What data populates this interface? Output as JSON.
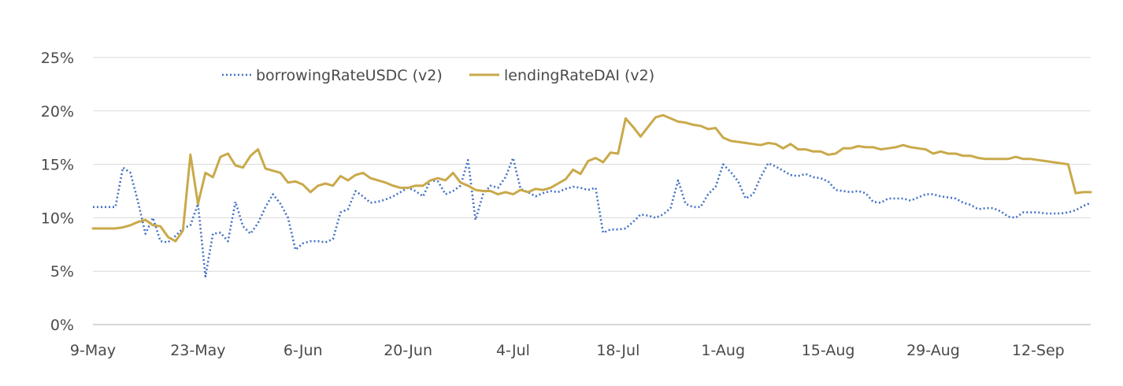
{
  "chart_data": {
    "type": "line",
    "title": "",
    "xlabel": "",
    "ylabel": "",
    "x_range": [
      "2023-05-09",
      "2023-09-19"
    ],
    "x_ticks": [
      {
        "date": "2023-05-09",
        "label": "9-May"
      },
      {
        "date": "2023-05-23",
        "label": "23-May"
      },
      {
        "date": "2023-06-06",
        "label": "6-Jun"
      },
      {
        "date": "2023-06-20",
        "label": "20-Jun"
      },
      {
        "date": "2023-07-04",
        "label": "4-Jul"
      },
      {
        "date": "2023-07-18",
        "label": "18-Jul"
      },
      {
        "date": "2023-08-01",
        "label": "1-Aug"
      },
      {
        "date": "2023-08-15",
        "label": "15-Aug"
      },
      {
        "date": "2023-08-29",
        "label": "29-Aug"
      },
      {
        "date": "2023-09-12",
        "label": "12-Sep"
      }
    ],
    "ylim": [
      0,
      25
    ],
    "y_ticks": [
      {
        "value": 0,
        "label": "0%"
      },
      {
        "value": 5,
        "label": "5%"
      },
      {
        "value": 10,
        "label": "10%"
      },
      {
        "value": 15,
        "label": "15%"
      },
      {
        "value": 20,
        "label": "20%"
      },
      {
        "value": 25,
        "label": "25%"
      }
    ],
    "grid": "horizontal",
    "legend_position": "top-left",
    "series": [
      {
        "name": "borrowingRateUSDC (v2)",
        "color": "#4472C4",
        "style": "dotted",
        "points": [
          [
            "2023-05-09",
            11.0
          ],
          [
            "2023-05-10",
            11.0
          ],
          [
            "2023-05-11",
            11.0
          ],
          [
            "2023-05-12",
            11.0
          ],
          [
            "2023-05-13",
            14.7
          ],
          [
            "2023-05-14",
            14.2
          ],
          [
            "2023-05-15",
            11.5
          ],
          [
            "2023-05-16",
            8.5
          ],
          [
            "2023-05-17",
            10.0
          ],
          [
            "2023-05-18",
            7.8
          ],
          [
            "2023-05-19",
            7.7
          ],
          [
            "2023-05-20",
            8.3
          ],
          [
            "2023-05-21",
            9.0
          ],
          [
            "2023-05-22",
            9.3
          ],
          [
            "2023-05-23",
            11.3
          ],
          [
            "2023-05-24",
            4.5
          ],
          [
            "2023-05-25",
            8.5
          ],
          [
            "2023-05-26",
            8.6
          ],
          [
            "2023-05-27",
            7.8
          ],
          [
            "2023-05-28",
            11.5
          ],
          [
            "2023-05-29",
            9.2
          ],
          [
            "2023-05-30",
            8.5
          ],
          [
            "2023-05-31",
            9.5
          ],
          [
            "2023-06-01",
            11.0
          ],
          [
            "2023-06-02",
            12.2
          ],
          [
            "2023-06-03",
            11.3
          ],
          [
            "2023-06-04",
            10.0
          ],
          [
            "2023-06-05",
            7.0
          ],
          [
            "2023-06-06",
            7.6
          ],
          [
            "2023-06-07",
            7.8
          ],
          [
            "2023-06-08",
            7.8
          ],
          [
            "2023-06-09",
            7.7
          ],
          [
            "2023-06-10",
            8.0
          ],
          [
            "2023-06-11",
            10.5
          ],
          [
            "2023-06-12",
            10.8
          ],
          [
            "2023-06-13",
            12.5
          ],
          [
            "2023-06-14",
            12.0
          ],
          [
            "2023-06-15",
            11.4
          ],
          [
            "2023-06-16",
            11.5
          ],
          [
            "2023-06-17",
            11.7
          ],
          [
            "2023-06-18",
            12.0
          ],
          [
            "2023-06-19",
            12.4
          ],
          [
            "2023-06-20",
            12.8
          ],
          [
            "2023-06-21",
            12.5
          ],
          [
            "2023-06-22",
            12.0
          ],
          [
            "2023-06-23",
            13.5
          ],
          [
            "2023-06-24",
            13.4
          ],
          [
            "2023-06-25",
            12.2
          ],
          [
            "2023-06-26",
            12.5
          ],
          [
            "2023-06-27",
            13.0
          ],
          [
            "2023-06-28",
            15.4
          ],
          [
            "2023-06-29",
            9.8
          ],
          [
            "2023-06-30",
            12.2
          ],
          [
            "2023-07-01",
            13.0
          ],
          [
            "2023-07-02",
            12.8
          ],
          [
            "2023-07-03",
            13.8
          ],
          [
            "2023-07-04",
            15.6
          ],
          [
            "2023-07-05",
            12.7
          ],
          [
            "2023-07-06",
            12.4
          ],
          [
            "2023-07-07",
            12.0
          ],
          [
            "2023-07-08",
            12.3
          ],
          [
            "2023-07-09",
            12.5
          ],
          [
            "2023-07-10",
            12.4
          ],
          [
            "2023-07-11",
            12.7
          ],
          [
            "2023-07-12",
            12.9
          ],
          [
            "2023-07-13",
            12.8
          ],
          [
            "2023-07-14",
            12.6
          ],
          [
            "2023-07-15",
            12.8
          ],
          [
            "2023-07-16",
            8.6
          ],
          [
            "2023-07-17",
            8.9
          ],
          [
            "2023-07-18",
            8.9
          ],
          [
            "2023-07-19",
            9.0
          ],
          [
            "2023-07-20",
            9.6
          ],
          [
            "2023-07-21",
            10.3
          ],
          [
            "2023-07-22",
            10.2
          ],
          [
            "2023-07-23",
            10.0
          ],
          [
            "2023-07-24",
            10.3
          ],
          [
            "2023-07-25",
            10.9
          ],
          [
            "2023-07-26",
            13.5
          ],
          [
            "2023-07-27",
            11.3
          ],
          [
            "2023-07-28",
            11.0
          ],
          [
            "2023-07-29",
            11.0
          ],
          [
            "2023-07-30",
            12.2
          ],
          [
            "2023-07-31",
            12.9
          ],
          [
            "2023-08-01",
            15.0
          ],
          [
            "2023-08-02",
            14.3
          ],
          [
            "2023-08-03",
            13.4
          ],
          [
            "2023-08-04",
            11.8
          ],
          [
            "2023-08-05",
            12.2
          ],
          [
            "2023-08-06",
            13.8
          ],
          [
            "2023-08-07",
            15.1
          ],
          [
            "2023-08-08",
            14.8
          ],
          [
            "2023-08-09",
            14.4
          ],
          [
            "2023-08-10",
            14.0
          ],
          [
            "2023-08-11",
            13.9
          ],
          [
            "2023-08-12",
            14.1
          ],
          [
            "2023-08-13",
            13.8
          ],
          [
            "2023-08-14",
            13.7
          ],
          [
            "2023-08-15",
            13.4
          ],
          [
            "2023-08-16",
            12.6
          ],
          [
            "2023-08-17",
            12.5
          ],
          [
            "2023-08-18",
            12.4
          ],
          [
            "2023-08-19",
            12.5
          ],
          [
            "2023-08-20",
            12.3
          ],
          [
            "2023-08-21",
            11.5
          ],
          [
            "2023-08-22",
            11.4
          ],
          [
            "2023-08-23",
            11.8
          ],
          [
            "2023-08-24",
            11.8
          ],
          [
            "2023-08-25",
            11.8
          ],
          [
            "2023-08-26",
            11.6
          ],
          [
            "2023-08-27",
            11.9
          ],
          [
            "2023-08-28",
            12.2
          ],
          [
            "2023-08-29",
            12.2
          ],
          [
            "2023-08-30",
            12.0
          ],
          [
            "2023-08-31",
            11.9
          ],
          [
            "2023-09-01",
            11.8
          ],
          [
            "2023-09-02",
            11.4
          ],
          [
            "2023-09-03",
            11.2
          ],
          [
            "2023-09-04",
            10.8
          ],
          [
            "2023-09-05",
            10.9
          ],
          [
            "2023-09-06",
            10.9
          ],
          [
            "2023-09-07",
            10.6
          ],
          [
            "2023-09-08",
            10.1
          ],
          [
            "2023-09-09",
            10.0
          ],
          [
            "2023-09-10",
            10.5
          ],
          [
            "2023-09-11",
            10.5
          ],
          [
            "2023-09-12",
            10.5
          ],
          [
            "2023-09-13",
            10.4
          ],
          [
            "2023-09-14",
            10.4
          ],
          [
            "2023-09-15",
            10.4
          ],
          [
            "2023-09-16",
            10.5
          ],
          [
            "2023-09-17",
            10.7
          ],
          [
            "2023-09-18",
            11.1
          ],
          [
            "2023-09-19",
            11.4
          ]
        ]
      },
      {
        "name": "lendingRateDAI (v2)",
        "color": "#C9A94A",
        "style": "solid",
        "points": [
          [
            "2023-05-09",
            9.0
          ],
          [
            "2023-05-10",
            9.0
          ],
          [
            "2023-05-11",
            9.0
          ],
          [
            "2023-05-12",
            9.0
          ],
          [
            "2023-05-13",
            9.1
          ],
          [
            "2023-05-14",
            9.3
          ],
          [
            "2023-05-15",
            9.6
          ],
          [
            "2023-05-16",
            9.8
          ],
          [
            "2023-05-17",
            9.3
          ],
          [
            "2023-05-18",
            9.2
          ],
          [
            "2023-05-19",
            8.2
          ],
          [
            "2023-05-20",
            7.8
          ],
          [
            "2023-05-21",
            8.8
          ],
          [
            "2023-05-22",
            15.9
          ],
          [
            "2023-05-23",
            11.3
          ],
          [
            "2023-05-24",
            14.2
          ],
          [
            "2023-05-25",
            13.8
          ],
          [
            "2023-05-26",
            15.7
          ],
          [
            "2023-05-27",
            16.0
          ],
          [
            "2023-05-28",
            14.9
          ],
          [
            "2023-05-29",
            14.7
          ],
          [
            "2023-05-30",
            15.8
          ],
          [
            "2023-05-31",
            16.4
          ],
          [
            "2023-06-01",
            14.6
          ],
          [
            "2023-06-02",
            14.4
          ],
          [
            "2023-06-03",
            14.2
          ],
          [
            "2023-06-04",
            13.3
          ],
          [
            "2023-06-05",
            13.4
          ],
          [
            "2023-06-06",
            13.1
          ],
          [
            "2023-06-07",
            12.4
          ],
          [
            "2023-06-08",
            13.0
          ],
          [
            "2023-06-09",
            13.2
          ],
          [
            "2023-06-10",
            13.0
          ],
          [
            "2023-06-11",
            13.9
          ],
          [
            "2023-06-12",
            13.5
          ],
          [
            "2023-06-13",
            14.0
          ],
          [
            "2023-06-14",
            14.2
          ],
          [
            "2023-06-15",
            13.7
          ],
          [
            "2023-06-16",
            13.5
          ],
          [
            "2023-06-17",
            13.3
          ],
          [
            "2023-06-18",
            13.0
          ],
          [
            "2023-06-19",
            12.8
          ],
          [
            "2023-06-20",
            12.8
          ],
          [
            "2023-06-21",
            13.0
          ],
          [
            "2023-06-22",
            13.0
          ],
          [
            "2023-06-23",
            13.5
          ],
          [
            "2023-06-24",
            13.7
          ],
          [
            "2023-06-25",
            13.5
          ],
          [
            "2023-06-26",
            14.2
          ],
          [
            "2023-06-27",
            13.3
          ],
          [
            "2023-06-28",
            13.0
          ],
          [
            "2023-06-29",
            12.6
          ],
          [
            "2023-06-30",
            12.5
          ],
          [
            "2023-07-01",
            12.5
          ],
          [
            "2023-07-02",
            12.2
          ],
          [
            "2023-07-03",
            12.4
          ],
          [
            "2023-07-04",
            12.2
          ],
          [
            "2023-07-05",
            12.6
          ],
          [
            "2023-07-06",
            12.4
          ],
          [
            "2023-07-07",
            12.7
          ],
          [
            "2023-07-08",
            12.6
          ],
          [
            "2023-07-09",
            12.8
          ],
          [
            "2023-07-10",
            13.2
          ],
          [
            "2023-07-11",
            13.6
          ],
          [
            "2023-07-12",
            14.5
          ],
          [
            "2023-07-13",
            14.1
          ],
          [
            "2023-07-14",
            15.3
          ],
          [
            "2023-07-15",
            15.6
          ],
          [
            "2023-07-16",
            15.2
          ],
          [
            "2023-07-17",
            16.1
          ],
          [
            "2023-07-18",
            16.0
          ],
          [
            "2023-07-19",
            19.3
          ],
          [
            "2023-07-20",
            18.5
          ],
          [
            "2023-07-21",
            17.6
          ],
          [
            "2023-07-22",
            18.5
          ],
          [
            "2023-07-23",
            19.4
          ],
          [
            "2023-07-24",
            19.6
          ],
          [
            "2023-07-25",
            19.3
          ],
          [
            "2023-07-26",
            19.0
          ],
          [
            "2023-07-27",
            18.9
          ],
          [
            "2023-07-28",
            18.7
          ],
          [
            "2023-07-29",
            18.6
          ],
          [
            "2023-07-30",
            18.3
          ],
          [
            "2023-07-31",
            18.4
          ],
          [
            "2023-08-01",
            17.5
          ],
          [
            "2023-08-02",
            17.2
          ],
          [
            "2023-08-03",
            17.1
          ],
          [
            "2023-08-04",
            17.0
          ],
          [
            "2023-08-05",
            16.9
          ],
          [
            "2023-08-06",
            16.8
          ],
          [
            "2023-08-07",
            17.0
          ],
          [
            "2023-08-08",
            16.9
          ],
          [
            "2023-08-09",
            16.5
          ],
          [
            "2023-08-10",
            16.9
          ],
          [
            "2023-08-11",
            16.4
          ],
          [
            "2023-08-12",
            16.4
          ],
          [
            "2023-08-13",
            16.2
          ],
          [
            "2023-08-14",
            16.2
          ],
          [
            "2023-08-15",
            15.9
          ],
          [
            "2023-08-16",
            16.0
          ],
          [
            "2023-08-17",
            16.5
          ],
          [
            "2023-08-18",
            16.5
          ],
          [
            "2023-08-19",
            16.7
          ],
          [
            "2023-08-20",
            16.6
          ],
          [
            "2023-08-21",
            16.6
          ],
          [
            "2023-08-22",
            16.4
          ],
          [
            "2023-08-23",
            16.5
          ],
          [
            "2023-08-24",
            16.6
          ],
          [
            "2023-08-25",
            16.8
          ],
          [
            "2023-08-26",
            16.6
          ],
          [
            "2023-08-27",
            16.5
          ],
          [
            "2023-08-28",
            16.4
          ],
          [
            "2023-08-29",
            16.0
          ],
          [
            "2023-08-30",
            16.2
          ],
          [
            "2023-08-31",
            16.0
          ],
          [
            "2023-09-01",
            16.0
          ],
          [
            "2023-09-02",
            15.8
          ],
          [
            "2023-09-03",
            15.8
          ],
          [
            "2023-09-04",
            15.6
          ],
          [
            "2023-09-05",
            15.5
          ],
          [
            "2023-09-06",
            15.5
          ],
          [
            "2023-09-07",
            15.5
          ],
          [
            "2023-09-08",
            15.5
          ],
          [
            "2023-09-09",
            15.7
          ],
          [
            "2023-09-10",
            15.5
          ],
          [
            "2023-09-11",
            15.5
          ],
          [
            "2023-09-12",
            15.4
          ],
          [
            "2023-09-13",
            15.3
          ],
          [
            "2023-09-14",
            15.2
          ],
          [
            "2023-09-15",
            15.1
          ],
          [
            "2023-09-16",
            15.0
          ],
          [
            "2023-09-17",
            12.3
          ],
          [
            "2023-09-18",
            12.4
          ],
          [
            "2023-09-19",
            12.4
          ]
        ]
      }
    ]
  }
}
